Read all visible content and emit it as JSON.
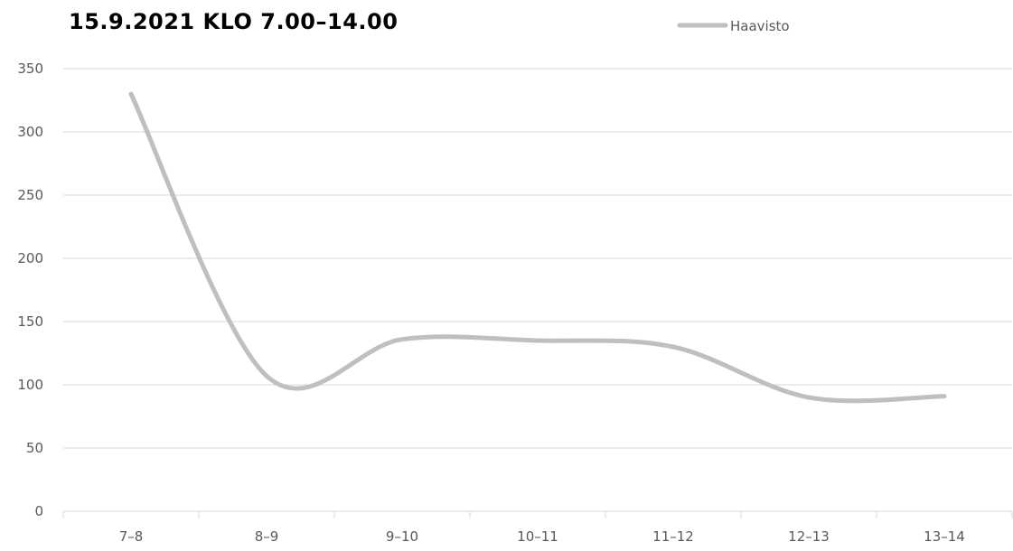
{
  "chart_data": {
    "type": "line",
    "title": "15.9.2021 KLO 7.00–14.00",
    "categories": [
      "7–8",
      "8–9",
      "9–10",
      "10–11",
      "11–12",
      "12–13",
      "13–14"
    ],
    "series": [
      {
        "name": "Haavisto",
        "values": [
          330,
          107,
          136,
          135,
          130,
          90,
          91
        ],
        "color": "#bfbfbf",
        "smooth": true
      }
    ],
    "ylim": [
      0,
      350
    ],
    "yticks": [
      0,
      50,
      100,
      150,
      200,
      250,
      300,
      350
    ],
    "xlabel": "",
    "ylabel": "",
    "grid": true,
    "legend": "top-right",
    "gridColor": "#d9d9d9",
    "axisColor": "#d9d9d9"
  }
}
